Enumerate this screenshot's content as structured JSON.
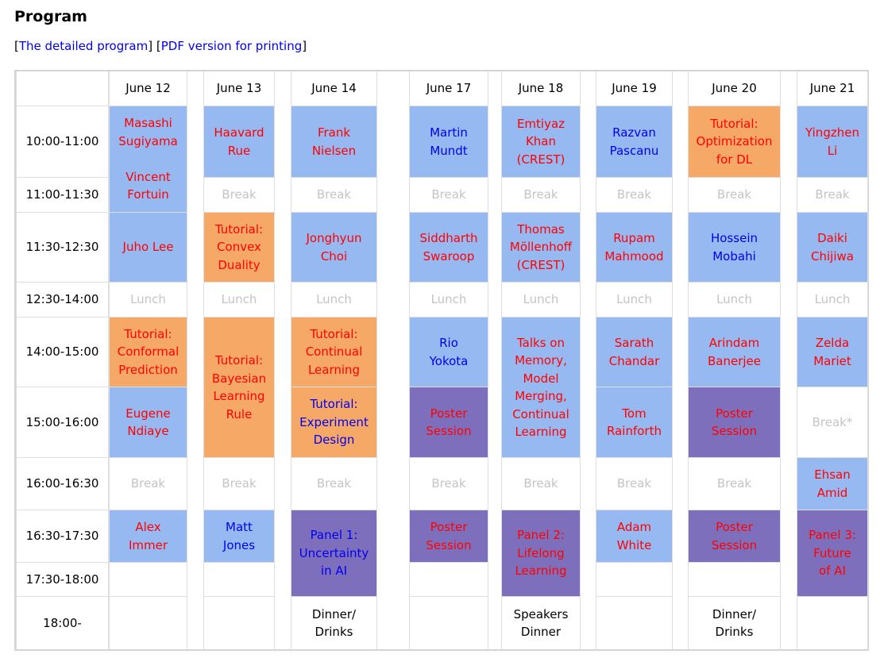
{
  "page": {
    "title": "Program",
    "link_open": "[",
    "link_detailed": "The detailed program",
    "link_mid": "] [",
    "link_pdf": "PDF version for printing",
    "link_close": "]"
  },
  "days": [
    "June 12",
    "June 13",
    "June 14",
    "June 17",
    "June 18",
    "June 19",
    "June 20",
    "June 21"
  ],
  "times": [
    "10:00-11:00",
    "11:00-11:30",
    "11:30-12:30",
    "12:30-14:00",
    "14:00-15:00",
    "15:00-16:00",
    "16:00-16:30",
    "16:30-17:30",
    "17:30-18:00",
    "18:00-"
  ],
  "colors": {
    "speaker": "#97b9f1",
    "tutorial": "#f6a967",
    "session": "#7e6fbd",
    "red_text": "#ff0000",
    "blue_text": "#0000ee",
    "break_text": "#c4c4c4"
  },
  "cells": {
    "jun12": {
      "s1": [
        "Masashi",
        "Sugiyama",
        "",
        "Vincent",
        "Fortuin"
      ],
      "s2": [
        "Juho Lee"
      ],
      "lunch": "Lunch",
      "s3": [
        "Tutorial:",
        "Conformal",
        "Prediction"
      ],
      "s4": [
        "Eugene",
        "Ndiaye"
      ],
      "brk": "Break",
      "s5": [
        "Alex",
        "Immer"
      ]
    },
    "jun13": {
      "s1": [
        "Haavard",
        "Rue"
      ],
      "brk1": "Break",
      "s2": [
        "Tutorial:",
        "Convex",
        "Duality"
      ],
      "lunch": "Lunch",
      "s3": [
        "Tutorial:",
        "Bayesian",
        "Learning",
        "Rule"
      ],
      "brk2": "Break",
      "s4": [
        "Matt",
        "Jones"
      ]
    },
    "jun14": {
      "s1": [
        "Frank",
        "Nielsen"
      ],
      "brk1": "Break",
      "s2": [
        "Jonghyun",
        "Choi"
      ],
      "lunch": "Lunch",
      "s3": [
        "Tutorial:",
        "Continual",
        "Learning"
      ],
      "s4": [
        "Tutorial:",
        "Experiment",
        "Design"
      ],
      "brk2": "Break",
      "s5": [
        "Panel 1:",
        "Uncertainty",
        "in AI"
      ],
      "s6": [
        "Dinner/",
        "Drinks"
      ]
    },
    "jun17": {
      "s1": [
        "Martin",
        "Mundt"
      ],
      "brk1": "Break",
      "s2": [
        "Siddharth",
        "Swaroop"
      ],
      "lunch": "Lunch",
      "s3": [
        "Rio",
        "Yokota"
      ],
      "s4": [
        "Poster",
        "Session"
      ],
      "brk2": "Break",
      "s5": [
        "Poster",
        "Session"
      ]
    },
    "jun18": {
      "s1": [
        "Emtiyaz",
        "Khan",
        "(CREST)"
      ],
      "brk1": "Break",
      "s2": [
        "Thomas",
        "Möllenhoff",
        "(CREST)"
      ],
      "lunch": "Lunch",
      "s3": [
        "Talks on",
        "Memory,",
        "Model",
        "Merging,",
        "Continual",
        "Learning"
      ],
      "brk2": "Break",
      "s4": [
        "Panel 2:",
        "Lifelong",
        "Learning"
      ],
      "s5": [
        "Speakers",
        "Dinner"
      ]
    },
    "jun19": {
      "s1": [
        "Razvan",
        "Pascanu"
      ],
      "brk1": "Break",
      "s2": [
        "Rupam",
        "Mahmood"
      ],
      "lunch": "Lunch",
      "s3": [
        "Sarath",
        "Chandar"
      ],
      "s4": [
        "Tom",
        "Rainforth"
      ],
      "brk2": "Break",
      "s5": [
        "Adam",
        "White"
      ]
    },
    "jun20": {
      "s1": [
        "Tutorial:",
        "Optimization",
        "for DL"
      ],
      "brk1": "Break",
      "s2": [
        "Hossein",
        "Mobahi"
      ],
      "lunch": "Lunch",
      "s3": [
        "Arindam",
        "Banerjee"
      ],
      "s4": [
        "Poster",
        "Session"
      ],
      "brk2": "Break",
      "s5": [
        "Poster",
        "Session"
      ],
      "s6": [
        "Dinner/",
        "Drinks"
      ]
    },
    "jun21": {
      "s1": [
        "Yingzhen",
        "Li"
      ],
      "brk1": "Break",
      "s2": [
        "Daiki",
        "Chijiwa"
      ],
      "lunch": "Lunch",
      "s3": [
        "Zelda",
        "Mariet"
      ],
      "brk2": "Break*",
      "s4": [
        "Ehsan",
        "Amid"
      ],
      "s5": [
        "Panel 3:",
        "Future",
        "of AI"
      ]
    }
  }
}
